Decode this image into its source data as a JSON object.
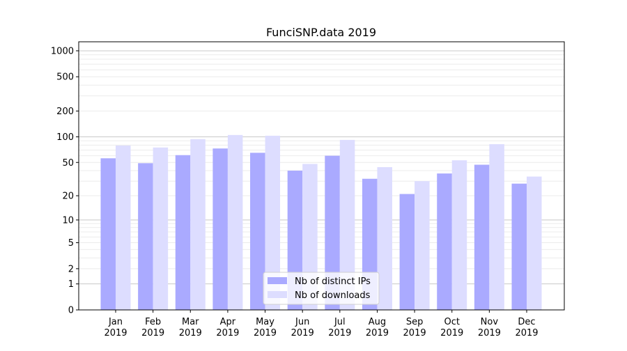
{
  "chart_data": {
    "type": "bar",
    "title": "FunciSNP.data 2019",
    "xlabel": "",
    "ylabel": "",
    "yscale": "symlog (log10(1+y))",
    "ylim": [
      0,
      1272
    ],
    "yticks": [
      0,
      1,
      2,
      5,
      10,
      20,
      50,
      100,
      200,
      500,
      1000
    ],
    "grid": true,
    "legend_placement": "bottom-center",
    "categories": [
      "Jan\n2019",
      "Feb\n2019",
      "Mar\n2019",
      "Apr\n2019",
      "May\n2019",
      "Jun\n2019",
      "Jul\n2019",
      "Aug\n2019",
      "Sep\n2019",
      "Oct\n2019",
      "Nov\n2019",
      "Dec\n2019"
    ],
    "series": [
      {
        "name": "Nb of distinct IPs",
        "color": "#aaaaff",
        "values": [
          56,
          49,
          61,
          73,
          65,
          40,
          60,
          32,
          21,
          37,
          47,
          28
        ]
      },
      {
        "name": "Nb of downloads",
        "color": "#ddddff",
        "values": [
          79,
          75,
          94,
          105,
          103,
          48,
          92,
          44,
          30,
          53,
          82,
          34
        ]
      }
    ]
  }
}
